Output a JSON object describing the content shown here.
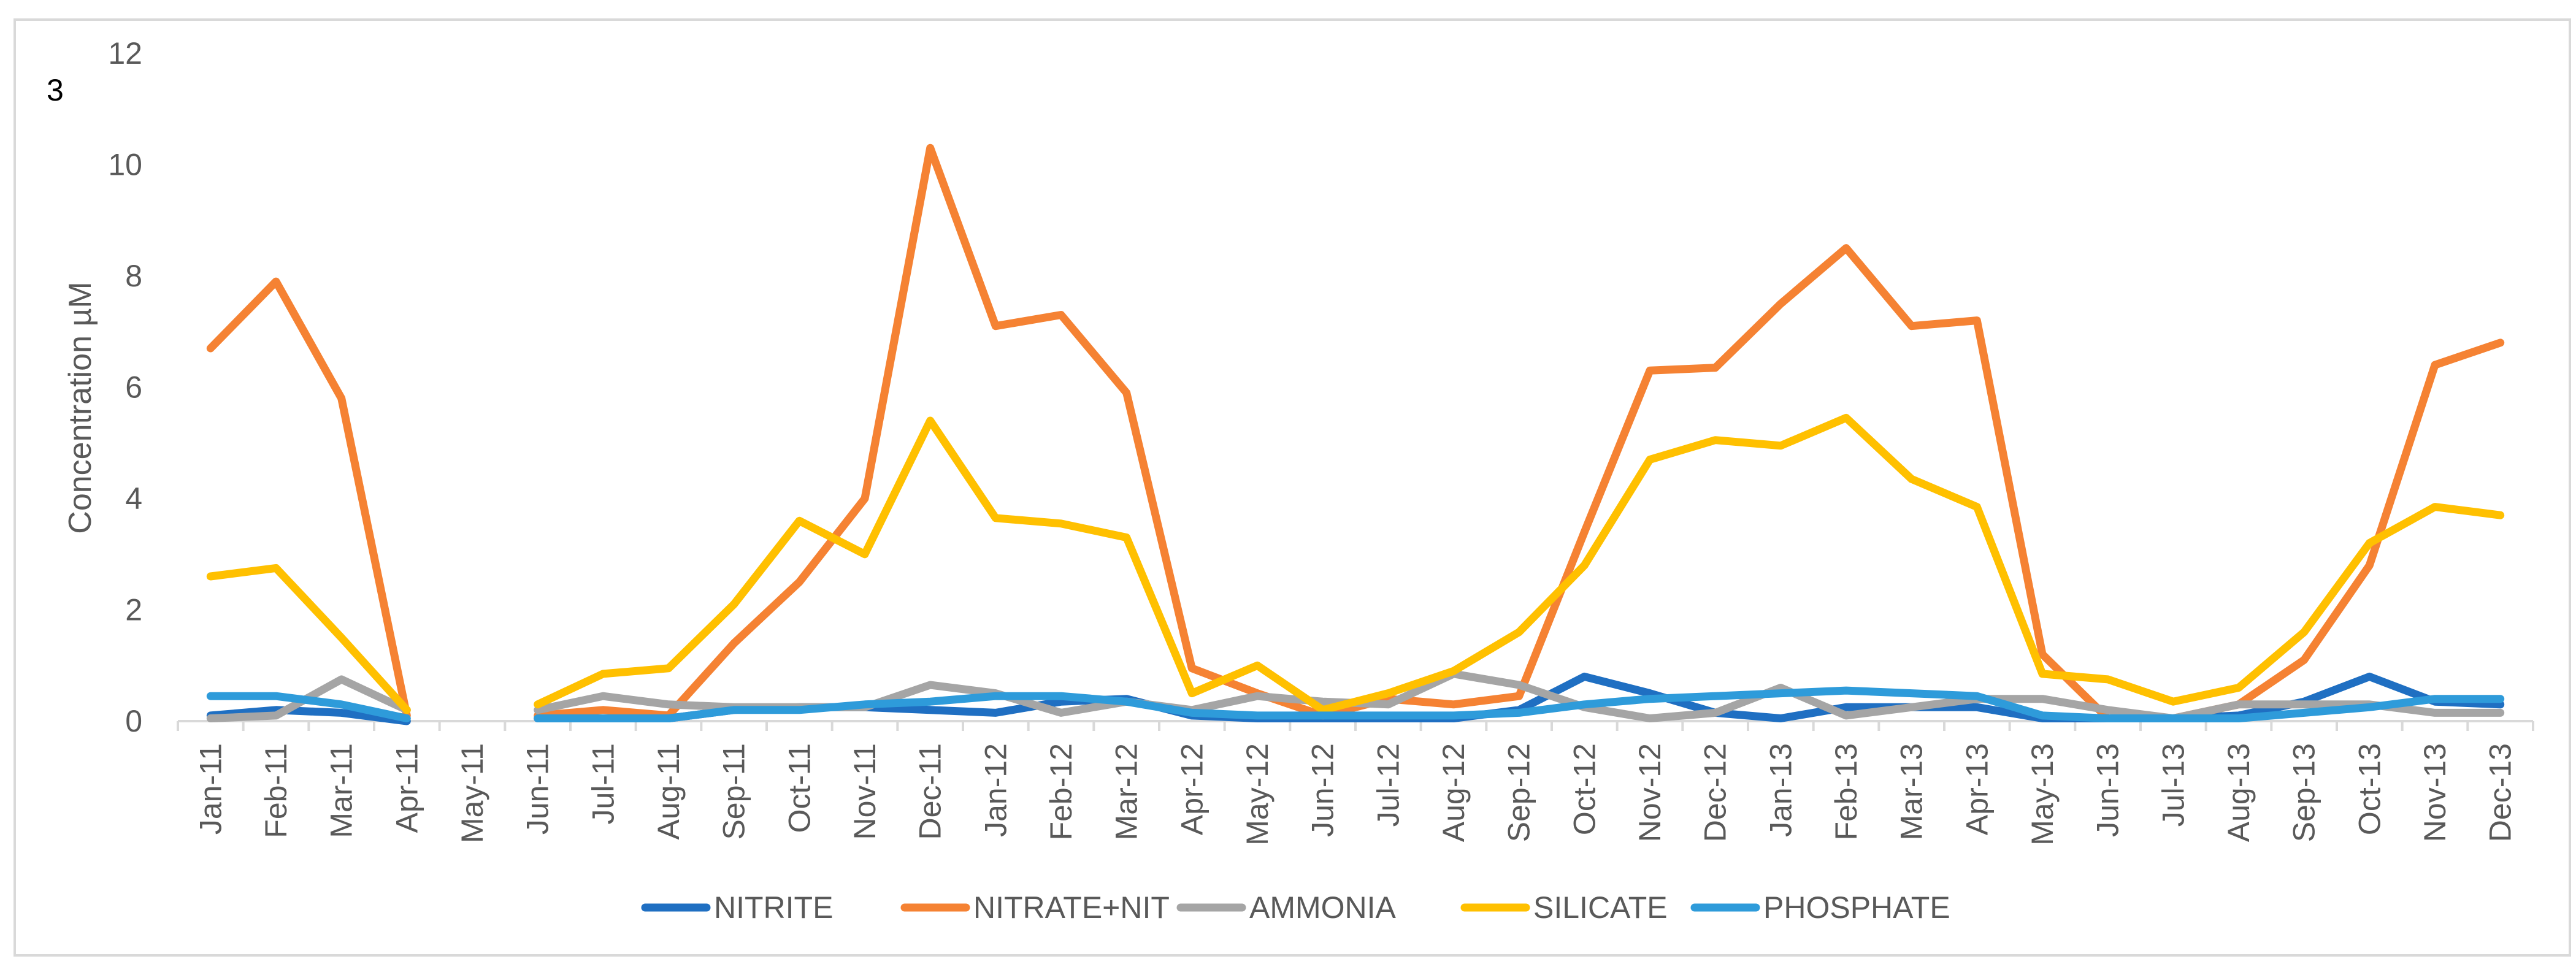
{
  "chart_data": {
    "type": "line",
    "panel_label": "3",
    "title": "",
    "xlabel": "",
    "ylabel": "Concentration µM",
    "ylim": [
      0,
      12
    ],
    "yticks": [
      0,
      2,
      4,
      6,
      8,
      10,
      12
    ],
    "grid": false,
    "legend_position": "bottom",
    "categories": [
      "Jan-11",
      "Feb-11",
      "Mar-11",
      "Apr-11",
      "May-11",
      "Jun-11",
      "Jul-11",
      "Aug-11",
      "Sep-11",
      "Oct-11",
      "Nov-11",
      "Dec-11",
      "Jan-12",
      "Feb-12",
      "Mar-12",
      "Apr-12",
      "May-12",
      "Jun-12",
      "Jul-12",
      "Aug-12",
      "Sep-12",
      "Oct-12",
      "Nov-12",
      "Dec-12",
      "Jan-13",
      "Feb-13",
      "Mar-13",
      "Apr-13",
      "May-13",
      "Jun-13",
      "Jul-13",
      "Aug-13",
      "Sep-13",
      "Oct-13",
      "Nov-13",
      "Dec-13"
    ],
    "series": [
      {
        "name": "NITRITE",
        "color": "#1F6FC2",
        "values": [
          0.1,
          0.2,
          0.15,
          0.0,
          null,
          0.05,
          0.05,
          0.05,
          0.2,
          0.25,
          0.25,
          0.2,
          0.15,
          0.35,
          0.4,
          0.1,
          0.05,
          0.05,
          0.05,
          0.05,
          0.2,
          0.8,
          0.5,
          0.15,
          0.05,
          0.25,
          0.25,
          0.25,
          0.05,
          0.05,
          0.05,
          0.1,
          0.35,
          0.8,
          0.35,
          0.3
        ]
      },
      {
        "name": "NITRATE+NIT",
        "color": "#F58233",
        "values": [
          6.7,
          7.9,
          5.8,
          0.1,
          null,
          0.1,
          0.2,
          0.1,
          1.4,
          2.5,
          4.0,
          10.3,
          7.1,
          7.3,
          5.9,
          0.95,
          0.5,
          0.1,
          0.4,
          0.3,
          0.45,
          3.4,
          6.3,
          6.35,
          7.5,
          8.5,
          7.1,
          7.2,
          1.2,
          0.05,
          0.05,
          0.3,
          1.1,
          2.8,
          6.4,
          6.8
        ]
      },
      {
        "name": "AMMONIA",
        "color": "#A5A5A5",
        "values": [
          0.05,
          0.1,
          0.75,
          0.2,
          null,
          0.2,
          0.45,
          0.3,
          0.25,
          0.25,
          0.25,
          0.65,
          0.5,
          0.15,
          0.35,
          0.2,
          0.45,
          0.35,
          0.3,
          0.85,
          0.65,
          0.25,
          0.05,
          0.15,
          0.6,
          0.1,
          0.25,
          0.4,
          0.4,
          0.2,
          0.05,
          0.3,
          0.3,
          0.3,
          0.15,
          0.15
        ]
      },
      {
        "name": "SILICATE",
        "color": "#FFC000",
        "values": [
          2.6,
          2.75,
          1.5,
          0.2,
          null,
          0.3,
          0.85,
          0.95,
          2.1,
          3.6,
          3.0,
          5.4,
          3.65,
          3.55,
          3.3,
          0.5,
          1.0,
          0.2,
          0.5,
          0.9,
          1.6,
          2.8,
          4.7,
          5.05,
          4.95,
          5.45,
          4.35,
          3.85,
          0.85,
          0.75,
          0.35,
          0.6,
          1.6,
          3.2,
          3.85,
          3.7
        ]
      },
      {
        "name": "PHOSPHATE",
        "color": "#2E9BDA",
        "values": [
          0.45,
          0.45,
          0.3,
          0.05,
          null,
          0.05,
          0.05,
          0.05,
          0.2,
          0.2,
          0.3,
          0.35,
          0.45,
          0.45,
          0.35,
          0.15,
          0.1,
          0.1,
          0.1,
          0.1,
          0.15,
          0.3,
          0.4,
          0.45,
          0.5,
          0.55,
          0.5,
          0.45,
          0.1,
          0.05,
          0.05,
          0.05,
          0.15,
          0.25,
          0.4,
          0.4
        ]
      }
    ]
  }
}
